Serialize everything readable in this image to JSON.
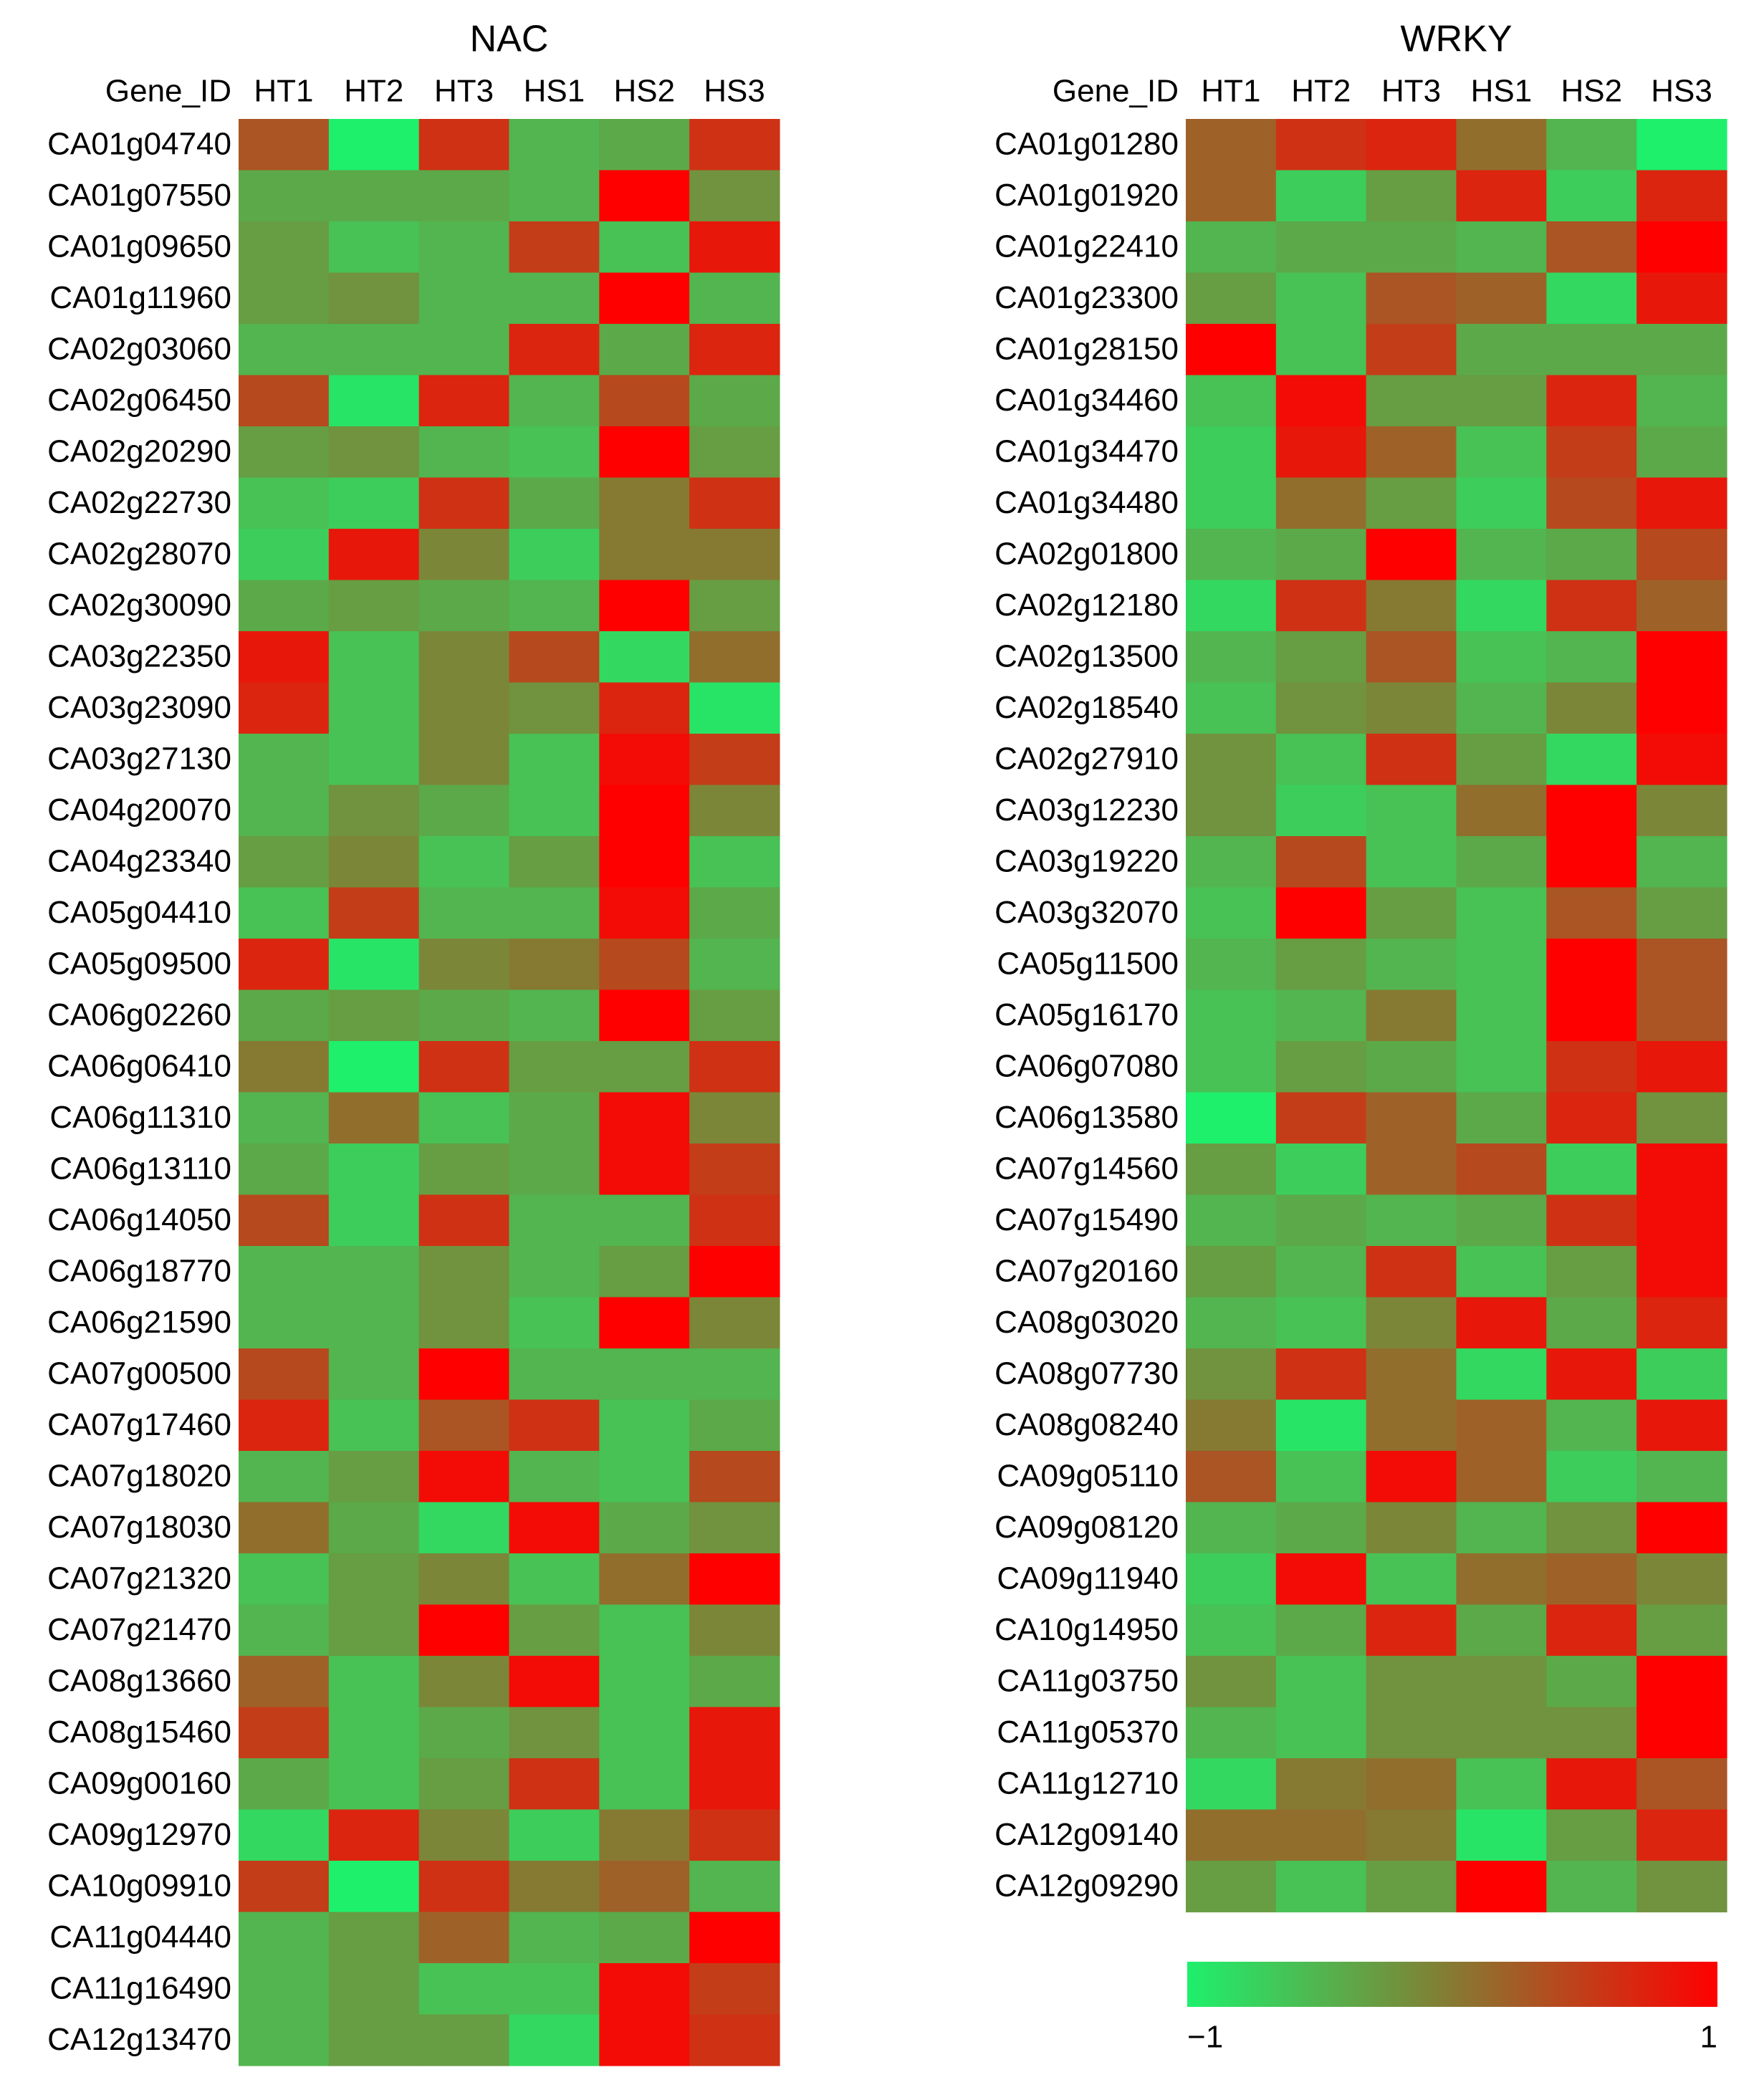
{
  "chart_data": [
    {
      "type": "heatmap",
      "title": "NAC",
      "row_header": "Gene_ID",
      "columns": [
        "HT1",
        "HT2",
        "HT3",
        "HS1",
        "HS2",
        "HS3"
      ],
      "rows": [
        "CA01g04740",
        "CA01g07550",
        "CA01g09650",
        "CA01g11960",
        "CA02g03060",
        "CA02g06450",
        "CA02g20290",
        "CA02g22730",
        "CA02g28070",
        "CA02g30090",
        "CA03g22350",
        "CA03g23090",
        "CA03g27130",
        "CA04g20070",
        "CA04g23340",
        "CA05g04410",
        "CA05g09500",
        "CA06g02260",
        "CA06g06410",
        "CA06g11310",
        "CA06g13110",
        "CA06g14050",
        "CA06g18770",
        "CA06g21590",
        "CA07g00500",
        "CA07g17460",
        "CA07g18020",
        "CA07g18030",
        "CA07g21320",
        "CA07g21470",
        "CA08g13660",
        "CA08g15460",
        "CA09g00160",
        "CA09g12970",
        "CA10g09910",
        "CA11g04440",
        "CA11g16490",
        "CA12g13470"
      ],
      "values": [
        [
          0.3,
          -1,
          0.6,
          -0.5,
          -0.4,
          0.6
        ],
        [
          -0.4,
          -0.4,
          -0.4,
          -0.5,
          1,
          -0.2
        ],
        [
          -0.3,
          -0.6,
          -0.5,
          0.5,
          -0.6,
          0.8
        ],
        [
          -0.3,
          -0.2,
          -0.5,
          -0.5,
          1,
          -0.5
        ],
        [
          -0.5,
          -0.5,
          -0.5,
          0.7,
          -0.4,
          0.7
        ],
        [
          0.4,
          -0.9,
          0.7,
          -0.5,
          0.4,
          -0.4
        ],
        [
          -0.3,
          -0.2,
          -0.5,
          -0.6,
          1,
          -0.3
        ],
        [
          -0.6,
          -0.7,
          0.6,
          -0.4,
          0,
          0.6
        ],
        [
          -0.7,
          0.8,
          -0.1,
          -0.7,
          0,
          0
        ],
        [
          -0.4,
          -0.3,
          -0.4,
          -0.5,
          1,
          -0.3
        ],
        [
          0.8,
          -0.6,
          -0.1,
          0.4,
          -0.8,
          0.1
        ],
        [
          0.7,
          -0.6,
          -0.1,
          -0.2,
          0.7,
          -0.9
        ],
        [
          -0.5,
          -0.6,
          -0.1,
          -0.6,
          0.9,
          0.5
        ],
        [
          -0.5,
          -0.2,
          -0.4,
          -0.6,
          1,
          -0.1
        ],
        [
          -0.3,
          -0.1,
          -0.6,
          -0.3,
          1,
          -0.6
        ],
        [
          -0.6,
          0.5,
          -0.5,
          -0.5,
          0.9,
          -0.4
        ],
        [
          0.7,
          -0.9,
          -0.1,
          0,
          0.4,
          -0.5
        ],
        [
          -0.4,
          -0.3,
          -0.4,
          -0.5,
          1,
          -0.3
        ],
        [
          0,
          -1,
          0.6,
          -0.3,
          -0.3,
          0.6
        ],
        [
          -0.5,
          0.1,
          -0.6,
          -0.4,
          0.9,
          -0.1
        ],
        [
          -0.4,
          -0.7,
          -0.3,
          -0.4,
          0.9,
          0.5
        ],
        [
          0.4,
          -0.7,
          0.6,
          -0.5,
          -0.5,
          0.6
        ],
        [
          -0.5,
          -0.5,
          -0.2,
          -0.5,
          -0.3,
          1
        ],
        [
          -0.5,
          -0.5,
          -0.2,
          -0.6,
          1,
          -0.1
        ],
        [
          0.4,
          -0.5,
          1,
          -0.5,
          -0.5,
          -0.5
        ],
        [
          0.7,
          -0.6,
          0.3,
          0.6,
          -0.6,
          -0.4
        ],
        [
          -0.5,
          -0.3,
          0.9,
          -0.5,
          -0.6,
          0.4
        ],
        [
          0.1,
          -0.4,
          -0.8,
          0.9,
          -0.4,
          -0.2
        ],
        [
          -0.6,
          -0.3,
          -0.1,
          -0.6,
          0.1,
          1
        ],
        [
          -0.5,
          -0.3,
          1,
          -0.3,
          -0.6,
          -0.1
        ],
        [
          0.2,
          -0.6,
          -0.1,
          0.9,
          -0.6,
          -0.4
        ],
        [
          0.5,
          -0.6,
          -0.4,
          -0.2,
          -0.6,
          0.8
        ],
        [
          -0.4,
          -0.6,
          -0.3,
          0.6,
          -0.6,
          0.8
        ],
        [
          -0.8,
          0.7,
          -0.1,
          -0.7,
          0,
          0.6
        ],
        [
          0.5,
          -1,
          0.6,
          0,
          0.2,
          -0.5
        ],
        [
          -0.5,
          -0.3,
          0.2,
          -0.5,
          -0.4,
          1
        ],
        [
          -0.5,
          -0.3,
          -0.6,
          -0.6,
          0.9,
          0.5
        ],
        [
          -0.5,
          -0.3,
          -0.3,
          -0.8,
          0.9,
          0.6
        ]
      ],
      "clim": [
        -1,
        1
      ],
      "colorscale": [
        "#1ef06c",
        "#867a32",
        "#ff0000"
      ]
    },
    {
      "type": "heatmap",
      "title": "WRKY",
      "row_header": "Gene_ID",
      "columns": [
        "HT1",
        "HT2",
        "HT3",
        "HS1",
        "HS2",
        "HS3"
      ],
      "rows": [
        "CA01g01280",
        "CA01g01920",
        "CA01g22410",
        "CA01g23300",
        "CA01g28150",
        "CA01g34460",
        "CA01g34470",
        "CA01g34480",
        "CA02g01800",
        "CA02g12180",
        "CA02g13500",
        "CA02g18540",
        "CA02g27910",
        "CA03g12230",
        "CA03g19220",
        "CA03g32070",
        "CA05g11500",
        "CA05g16170",
        "CA06g07080",
        "CA06g13580",
        "CA07g14560",
        "CA07g15490",
        "CA07g20160",
        "CA08g03020",
        "CA08g07730",
        "CA08g08240",
        "CA09g05110",
        "CA09g08120",
        "CA09g11940",
        "CA10g14950",
        "CA11g03750",
        "CA11g05370",
        "CA11g12710",
        "CA12g09140",
        "CA12g09290"
      ],
      "values": [
        [
          0.2,
          0.6,
          0.7,
          0.1,
          -0.5,
          -1
        ],
        [
          0.2,
          -0.7,
          -0.3,
          0.7,
          -0.7,
          0.7
        ],
        [
          -0.5,
          -0.4,
          -0.4,
          -0.5,
          0.3,
          1
        ],
        [
          -0.3,
          -0.6,
          0.3,
          0.2,
          -0.8,
          0.8
        ],
        [
          1,
          -0.6,
          0.5,
          -0.4,
          -0.4,
          -0.4
        ],
        [
          -0.6,
          0.9,
          -0.3,
          -0.3,
          0.7,
          -0.5
        ],
        [
          -0.7,
          0.8,
          0.2,
          -0.6,
          0.5,
          -0.4
        ],
        [
          -0.7,
          0.1,
          -0.3,
          -0.7,
          0.4,
          0.8
        ],
        [
          -0.5,
          -0.4,
          1,
          -0.5,
          -0.4,
          0.4
        ],
        [
          -0.8,
          0.6,
          0,
          -0.8,
          0.6,
          0.2
        ],
        [
          -0.5,
          -0.3,
          0.3,
          -0.6,
          -0.5,
          1
        ],
        [
          -0.6,
          -0.2,
          -0.1,
          -0.5,
          -0.1,
          1
        ],
        [
          -0.2,
          -0.6,
          0.6,
          -0.3,
          -0.8,
          0.9
        ],
        [
          -0.2,
          -0.7,
          -0.6,
          0.1,
          1,
          -0.1
        ],
        [
          -0.5,
          0.4,
          -0.6,
          -0.4,
          1,
          -0.5
        ],
        [
          -0.6,
          1,
          -0.3,
          -0.6,
          0.3,
          -0.3
        ],
        [
          -0.5,
          -0.3,
          -0.5,
          -0.6,
          1,
          0.3
        ],
        [
          -0.6,
          -0.5,
          0,
          -0.6,
          1,
          0.3
        ],
        [
          -0.6,
          -0.3,
          -0.4,
          -0.6,
          0.6,
          0.8
        ],
        [
          -1,
          0.5,
          0.2,
          -0.4,
          0.7,
          -0.2
        ],
        [
          -0.3,
          -0.7,
          0.2,
          0.4,
          -0.7,
          0.9
        ],
        [
          -0.5,
          -0.4,
          -0.5,
          -0.4,
          0.6,
          0.9
        ],
        [
          -0.3,
          -0.5,
          0.6,
          -0.6,
          -0.3,
          0.9
        ],
        [
          -0.5,
          -0.6,
          -0.1,
          0.8,
          -0.4,
          0.7
        ],
        [
          -0.2,
          0.6,
          0.1,
          -0.8,
          0.8,
          -0.7
        ],
        [
          0,
          -0.9,
          0.1,
          0.2,
          -0.5,
          0.8
        ],
        [
          0.3,
          -0.6,
          0.9,
          0.2,
          -0.7,
          -0.5
        ],
        [
          -0.5,
          -0.4,
          -0.1,
          -0.5,
          -0.2,
          1
        ],
        [
          -0.7,
          0.9,
          -0.6,
          0.1,
          0.2,
          -0.1
        ],
        [
          -0.6,
          -0.4,
          0.7,
          -0.4,
          0.7,
          -0.3
        ],
        [
          -0.2,
          -0.6,
          -0.2,
          -0.2,
          -0.4,
          1
        ],
        [
          -0.5,
          -0.6,
          -0.2,
          -0.2,
          -0.2,
          1
        ],
        [
          -0.8,
          0,
          0.1,
          -0.6,
          0.8,
          0.3
        ],
        [
          0.1,
          0.1,
          0,
          -0.9,
          -0.3,
          0.7
        ],
        [
          -0.3,
          -0.6,
          -0.3,
          1,
          -0.5,
          -0.2
        ]
      ],
      "clim": [
        -1,
        1
      ],
      "colorscale": [
        "#1ef06c",
        "#867a32",
        "#ff0000"
      ],
      "colorbar_ticks": [
        {
          "value": -1,
          "label": "−1"
        },
        1
      ]
    }
  ]
}
